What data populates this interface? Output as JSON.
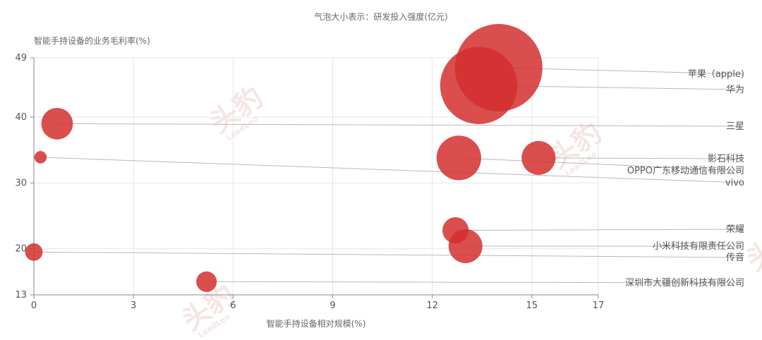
{
  "chart_data": {
    "type": "scatter",
    "title": "气泡大小表示：研发投入强度(亿元)",
    "xlabel": "智能手持设备相对规模(%)",
    "ylabel": "智能手持设备的业务毛利率(%)",
    "xlim": [
      0,
      17
    ],
    "ylim": [
      13,
      49
    ],
    "x_ticks": [
      "0",
      "3",
      "6",
      "9",
      "12",
      "15",
      "17"
    ],
    "y_ticks": [
      "13",
      "20",
      "30",
      "40",
      "49"
    ],
    "grid": true,
    "bubble_color": "#d32f2f",
    "points": [
      {
        "name": "苹果（apple)",
        "x": 14.0,
        "y": 47.5,
        "size": 100
      },
      {
        "name": "华为",
        "x": 13.4,
        "y": 44.8,
        "size": 78
      },
      {
        "name": "三星",
        "x": 0.7,
        "y": 39.0,
        "size": 13
      },
      {
        "name": "影石科技",
        "x": 15.2,
        "y": 33.8,
        "size": 15
      },
      {
        "name": "OPPO广东移动通信有限公司",
        "x": 12.8,
        "y": 33.8,
        "size": 26
      },
      {
        "name": "vivo",
        "x": 0.2,
        "y": 33.9,
        "size": 2
      },
      {
        "name": "荣耀",
        "x": 12.7,
        "y": 22.8,
        "size": 9
      },
      {
        "name": "小米科技有限责任公司",
        "x": 13.0,
        "y": 20.4,
        "size": 15
      },
      {
        "name": "传音",
        "x": 0.0,
        "y": 19.5,
        "size": 4
      },
      {
        "name": "深圳市大疆创新科技有限公司",
        "x": 5.2,
        "y": 15.0,
        "size": 5.5
      }
    ]
  },
  "watermark": {
    "text": "头豹",
    "sub": "LeadLeo"
  }
}
